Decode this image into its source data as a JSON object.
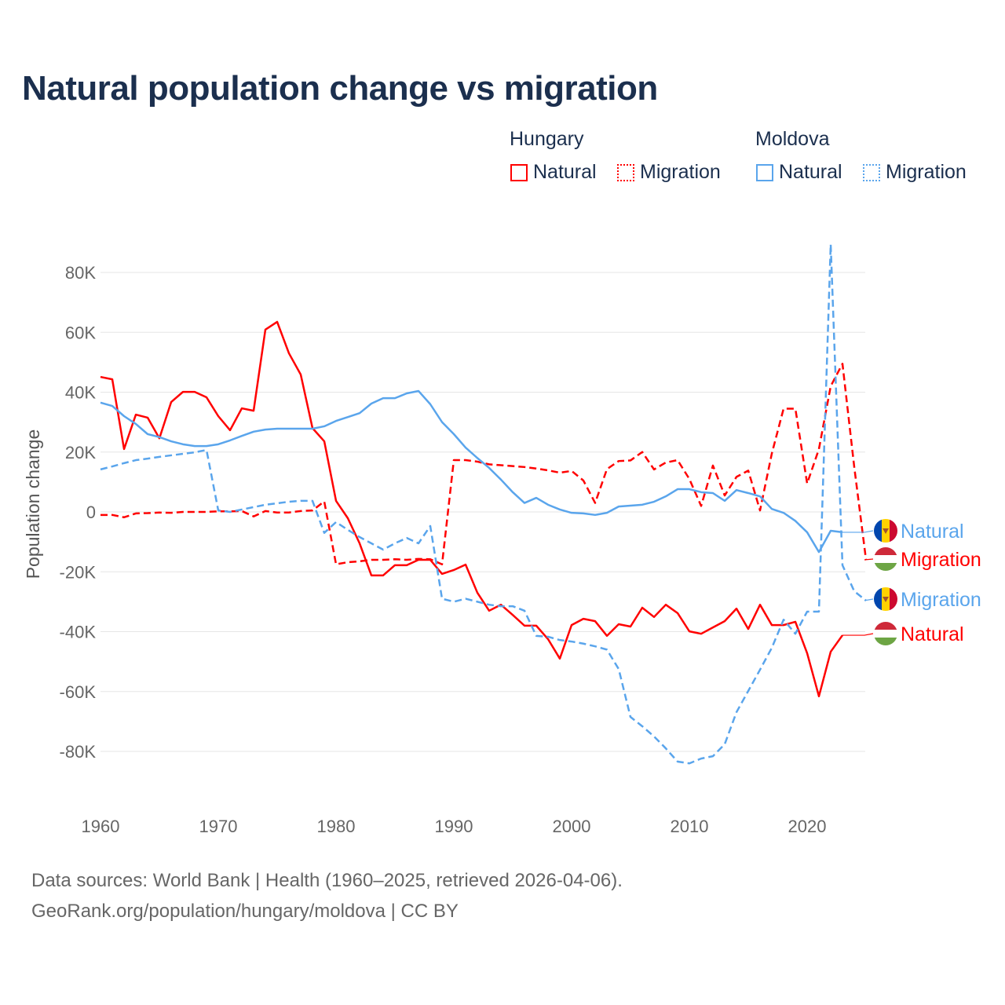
{
  "chart_data": {
    "type": "line",
    "title": "Natural population change vs migration",
    "xlabel": "",
    "ylabel": "Population change",
    "xlim": [
      1960,
      2025
    ],
    "ylim": [
      -100000,
      90000
    ],
    "x_ticks": [
      1960,
      1970,
      1980,
      1990,
      2000,
      2010,
      2020
    ],
    "x_tick_labels": [
      "1960",
      "1970",
      "1980",
      "1990",
      "2000",
      "2010",
      "2020"
    ],
    "y_ticks": [
      80000,
      60000,
      40000,
      20000,
      0,
      -20000,
      -40000,
      -60000,
      -80000
    ],
    "y_tick_labels": [
      "80K",
      "60K",
      "40K",
      "20K",
      "0",
      "-20K",
      "-40K",
      "-60K",
      "-80K"
    ],
    "grid": true,
    "legend": {
      "groups": [
        {
          "heading": "Hungary",
          "items": [
            "Natural",
            "Migration"
          ]
        },
        {
          "heading": "Moldova",
          "items": [
            "Natural",
            "Migration"
          ]
        }
      ],
      "placement": "top-right"
    },
    "series": [
      {
        "name": "Hungary Natural",
        "country": "Hungary",
        "kind": "Natural",
        "label": "Natural",
        "color": "#ff0000",
        "dash": false,
        "start_year": 1960,
        "values": [
          45100,
          44300,
          21000,
          32500,
          31500,
          24600,
          36700,
          40100,
          40100,
          38300,
          32000,
          27300,
          34600,
          33800,
          60900,
          63500,
          53000,
          45900,
          28000,
          23600,
          3700,
          -2100,
          -10500,
          -21200,
          -21200,
          -17800,
          -17800,
          -16000,
          -16000,
          -20700,
          -19400,
          -17600,
          -27000,
          -33000,
          -31000,
          -34400,
          -38000,
          -38000,
          -42500,
          -49000,
          -37800,
          -35700,
          -36500,
          -41400,
          -37500,
          -38300,
          -32000,
          -35100,
          -31000,
          -33800,
          -39900,
          -40700,
          -38600,
          -36500,
          -32300,
          -39100,
          -31000,
          -37800,
          -37800,
          -36700,
          -47200,
          -61600,
          -46700,
          -41200
        ]
      },
      {
        "name": "Hungary Migration",
        "country": "Hungary",
        "kind": "Migration",
        "label": "Migration",
        "color": "#ff0000",
        "dash": true,
        "start_year": 1960,
        "values": [
          -1000,
          -1000,
          -1800,
          -500,
          -400,
          -200,
          -300,
          0,
          0,
          0,
          200,
          200,
          300,
          -1500,
          300,
          -200,
          -200,
          300,
          500,
          3500,
          -17500,
          -16800,
          -16500,
          -16000,
          -16000,
          -15800,
          -16000,
          -15700,
          -15800,
          -17500,
          17300,
          17300,
          16800,
          15900,
          15600,
          15300,
          15000,
          14500,
          13900,
          13100,
          13700,
          10500,
          3000,
          14300,
          17000,
          17200,
          20000,
          14200,
          16500,
          17300,
          11000,
          2000,
          15500,
          5500,
          11700,
          13800,
          500,
          19500,
          34500,
          34500,
          9500,
          21000,
          42000,
          49500,
          15000,
          -16000
        ]
      },
      {
        "name": "Moldova Natural",
        "country": "Moldova",
        "kind": "Natural",
        "label": "Natural",
        "color": "#5aa5ec",
        "dash": false,
        "start_year": 1960,
        "values": [
          36500,
          35400,
          32000,
          29400,
          26000,
          25000,
          23600,
          22600,
          22000,
          22000,
          22600,
          23900,
          25400,
          26800,
          27500,
          27800,
          27800,
          27800,
          27800,
          28600,
          30400,
          31700,
          33000,
          36200,
          38000,
          38000,
          39600,
          40400,
          36000,
          30000,
          26000,
          21500,
          18000,
          14700,
          10800,
          6600,
          3000,
          4700,
          2400,
          800,
          -300,
          -500,
          -1000,
          -300,
          1800,
          2100,
          2400,
          3400,
          5200,
          7600,
          7600,
          6600,
          6300,
          3700,
          7300,
          6300,
          5200,
          1000,
          -300,
          -3000,
          -6800,
          -13400,
          -6300,
          -6800
        ]
      },
      {
        "name": "Moldova Migration",
        "country": "Moldova",
        "kind": "Migration",
        "label": "Migration",
        "color": "#5aa5ec",
        "dash": true,
        "start_year": 1960,
        "values": [
          14200,
          15200,
          16300,
          17300,
          17800,
          18400,
          18900,
          19400,
          19900,
          20700,
          500,
          0,
          800,
          1600,
          2400,
          2900,
          3400,
          3700,
          3700,
          -7000,
          -3400,
          -6000,
          -8400,
          -10500,
          -12600,
          -10500,
          -8700,
          -10500,
          -4700,
          -29000,
          -30000,
          -29000,
          -30000,
          -31000,
          -31500,
          -31500,
          -33000,
          -41400,
          -41700,
          -42800,
          -43300,
          -44000,
          -44900,
          -46000,
          -52500,
          -68500,
          -71600,
          -75000,
          -79000,
          -83400,
          -84000,
          -82400,
          -81600,
          -77600,
          -66900,
          -59800,
          -52700,
          -45400,
          -36000,
          -40700,
          -33300,
          -33300,
          89400,
          -17800,
          -26500,
          -29600
        ]
      }
    ]
  },
  "end_labels_order": [
    "Moldova Natural",
    "Hungary Migration",
    "Moldova Migration",
    "Hungary Natural"
  ],
  "footer": {
    "line1": "Data sources: World Bank | Health (1960–2025, retrieved 2026-04-06).",
    "line2": "GeoRank.org/population/hungary/moldova | CC BY"
  },
  "colors": {
    "hungary": "#ff0000",
    "moldova": "#5aa5ec",
    "title": "#1b2f4e",
    "grid": "#e6e6e6",
    "axis_text": "#666666"
  }
}
